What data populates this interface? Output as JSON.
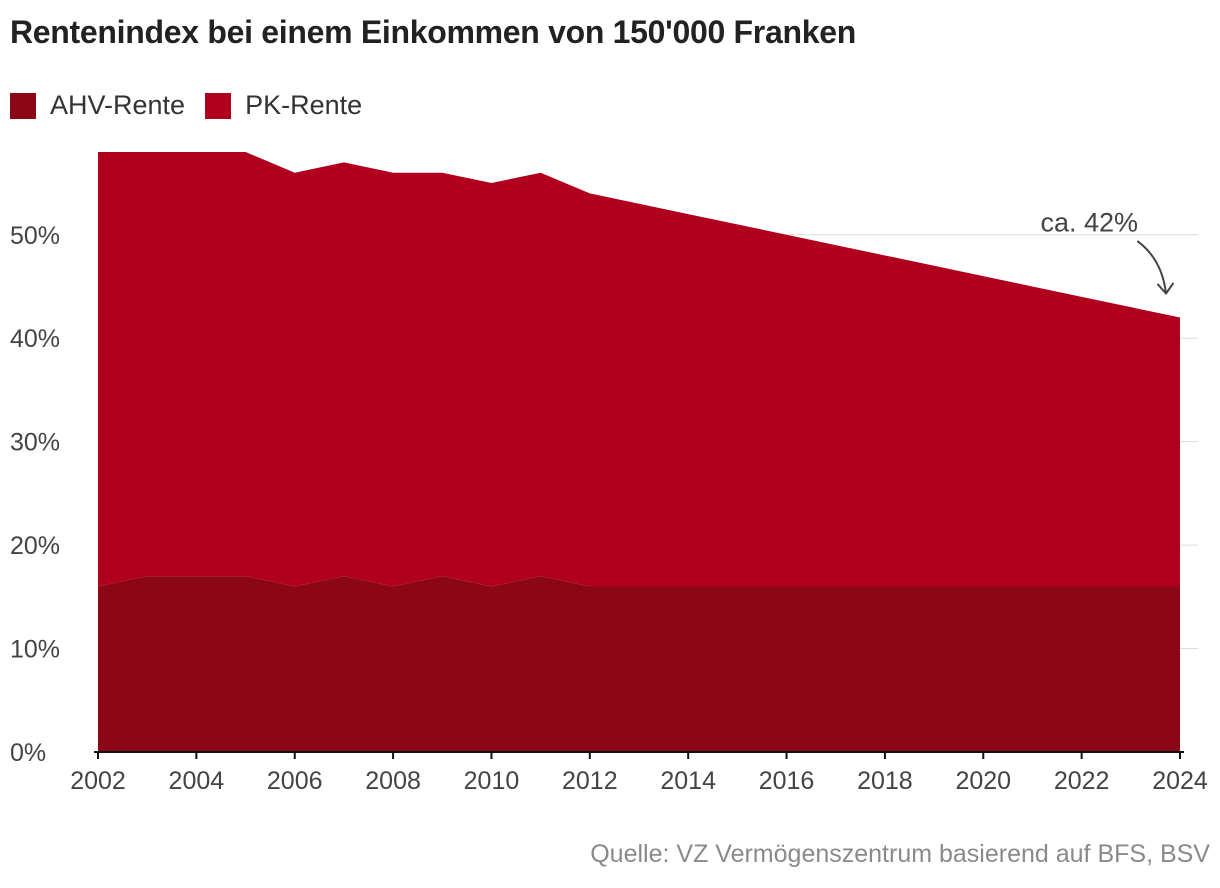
{
  "chart_data": {
    "type": "area",
    "stacked": true,
    "title": "Rentenindex bei einem Einkommen von 150'000 Franken",
    "x": [
      2002,
      2003,
      2004,
      2005,
      2006,
      2007,
      2008,
      2009,
      2010,
      2011,
      2012,
      2013,
      2014,
      2015,
      2016,
      2017,
      2018,
      2019,
      2020,
      2021,
      2022,
      2023,
      2024
    ],
    "series": [
      {
        "name": "AHV-Rente",
        "color": "#8b0715",
        "values": [
          16,
          17,
          17,
          17,
          16,
          17,
          16,
          17,
          16,
          17,
          16,
          16,
          16,
          16,
          16,
          16,
          16,
          16,
          16,
          16,
          16,
          16,
          16
        ]
      },
      {
        "name": "PK-Rente",
        "color": "#b0001e",
        "values": [
          42,
          41,
          41,
          41,
          40,
          40,
          40,
          39,
          39,
          39,
          38,
          37,
          36,
          35,
          34,
          33,
          32,
          31,
          30,
          29,
          28,
          27,
          26
        ]
      }
    ],
    "xticks": [
      "2002",
      "2004",
      "2006",
      "2008",
      "2010",
      "2012",
      "2014",
      "2016",
      "2018",
      "2020",
      "2022",
      "2024"
    ],
    "yticks": [
      "0%",
      "10%",
      "20%",
      "30%",
      "40%",
      "50%"
    ],
    "ylim": [
      0,
      58
    ],
    "xlabel": "",
    "ylabel": "",
    "grid": true,
    "legend_position": "top-left",
    "annotation": {
      "text": "ca. 42%",
      "x": 2024,
      "y": 42
    },
    "source": "Quelle: VZ Vermögenszentrum basierend auf BFS, BSV"
  }
}
